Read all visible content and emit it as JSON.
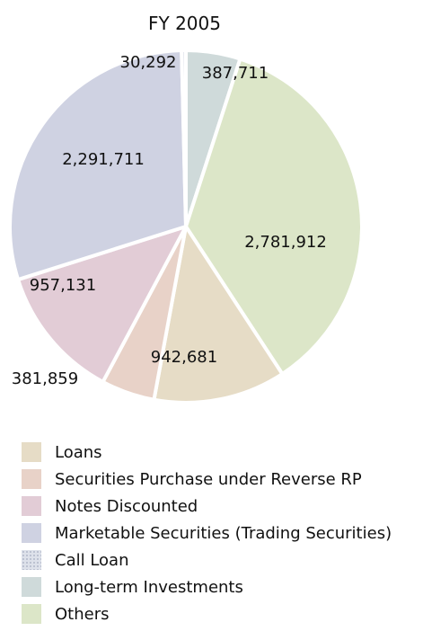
{
  "chart_data": {
    "type": "pie",
    "title": "FY 2005",
    "slices": [
      {
        "label": "Long-term Investments",
        "value": 387711,
        "value_label": "387,711",
        "color": "#cfdada"
      },
      {
        "label": "Others",
        "value": 2781912,
        "value_label": "2,781,912",
        "color": "#dce6c8"
      },
      {
        "label": "Loans",
        "value": 942681,
        "value_label": "942,681",
        "color": "#e6dcc6"
      },
      {
        "label": "Securities Purchase under Reverse RP",
        "value": 381859,
        "value_label": "381,859",
        "color": "#e8d2c8"
      },
      {
        "label": "Notes Discounted",
        "value": 957131,
        "value_label": "957,131",
        "color": "#e2ccd6"
      },
      {
        "label": "Marketable Securities (Trading Securities)",
        "value": 2291711,
        "value_label": "2,291,711",
        "color": "#cfd2e2"
      },
      {
        "label": "Call Loan",
        "value": 30292,
        "value_label": "30,292",
        "color": "#dde1ea"
      }
    ],
    "legend": [
      {
        "label": "Loans",
        "color": "#e6dcc6"
      },
      {
        "label": "Securities Purchase under Reverse RP",
        "color": "#e8d2c8"
      },
      {
        "label": "Notes Discounted",
        "color": "#e2ccd6"
      },
      {
        "label": "Marketable Securities (Trading Securities)",
        "color": "#cfd2e2"
      },
      {
        "label": "Call Loan",
        "color": "#dde1ea",
        "pattern": true
      },
      {
        "label": "Long-term Investments",
        "color": "#cfdada"
      },
      {
        "label": "Others",
        "color": "#dce6c8"
      }
    ],
    "legend_position": "bottom"
  }
}
